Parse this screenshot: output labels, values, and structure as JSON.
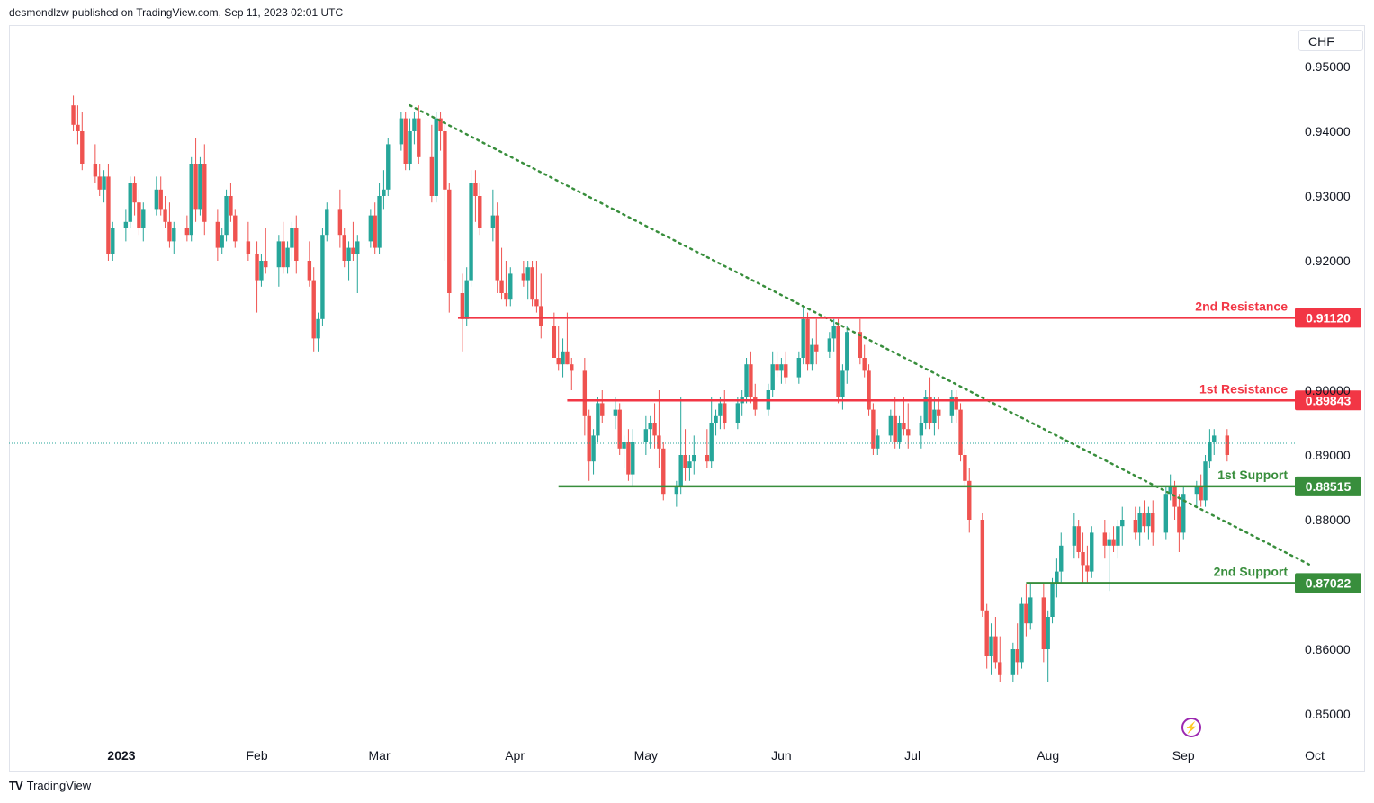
{
  "header": {
    "publisher": "desmondlzw published on TradingView.com, Sep 11, 2023 02:01 UTC"
  },
  "currency_label": "CHF",
  "footer": {
    "logo_text": "TV",
    "brand": "TradingView"
  },
  "colors": {
    "up": "#26a69a",
    "down": "#ef5350",
    "resistance": "#f23645",
    "support": "#388e3c",
    "trend": "#388e3c",
    "grid_text": "#131722",
    "lightning": "#9c27b0"
  },
  "icons": {
    "lightning": "lightning-icon",
    "tv_logo": "tradingview-logo-icon"
  },
  "chart_data": {
    "type": "candlestick",
    "title": "",
    "xlabel": "",
    "ylabel": "",
    "ylim": [
      0.845,
      0.955
    ],
    "y_ticks": [
      "0.95000",
      "0.94000",
      "0.93000",
      "0.92000",
      "0.90000",
      "0.89000",
      "0.88000",
      "0.86000",
      "0.85000"
    ],
    "x_ticks": [
      "2023",
      "Feb",
      "Mar",
      "Apr",
      "May",
      "Jun",
      "Jul",
      "Aug",
      "Sep",
      "Oct"
    ],
    "levels": [
      {
        "name": "2nd Resistance",
        "value": "0.91120",
        "price": 0.9112,
        "kind": "resistance"
      },
      {
        "name": "1st Resistance",
        "value": "0.89843",
        "price": 0.89843,
        "kind": "resistance"
      },
      {
        "name": "1st Support",
        "value": "0.88515",
        "price": 0.88515,
        "kind": "support"
      },
      {
        "name": "2nd Support",
        "value": "0.87022",
        "price": 0.87022,
        "kind": "support"
      }
    ],
    "trendline": {
      "start": [
        "Mar 8",
        0.944
      ],
      "end": [
        "Sep 30",
        0.873
      ],
      "style": "dotted"
    },
    "last_price": 0.8918,
    "grid": false,
    "candles": [
      [
        "Dec 21",
        0.944,
        0.9455,
        0.94,
        0.941
      ],
      [
        "Dec 22",
        0.941,
        0.944,
        0.938,
        0.94
      ],
      [
        "Dec 23",
        0.94,
        0.943,
        0.934,
        0.935
      ],
      [
        "Dec 26",
        0.935,
        0.938,
        0.932,
        0.933
      ],
      [
        "Dec 27",
        0.933,
        0.935,
        0.93,
        0.931
      ],
      [
        "Dec 28",
        0.931,
        0.934,
        0.929,
        0.933
      ],
      [
        "Dec 29",
        0.933,
        0.935,
        0.92,
        0.921
      ],
      [
        "Dec 30",
        0.921,
        0.926,
        0.92,
        0.925
      ],
      [
        "Jan 2",
        0.925,
        0.928,
        0.923,
        0.926
      ],
      [
        "Jan 3",
        0.926,
        0.933,
        0.925,
        0.932
      ],
      [
        "Jan 4",
        0.932,
        0.933,
        0.927,
        0.929
      ],
      [
        "Jan 5",
        0.929,
        0.931,
        0.924,
        0.925
      ],
      [
        "Jan 6",
        0.925,
        0.929,
        0.923,
        0.928
      ],
      [
        "Jan 9",
        0.928,
        0.933,
        0.927,
        0.931
      ],
      [
        "Jan 10",
        0.931,
        0.933,
        0.927,
        0.928
      ],
      [
        "Jan 11",
        0.928,
        0.93,
        0.925,
        0.926
      ],
      [
        "Jan 12",
        0.926,
        0.929,
        0.922,
        0.923
      ],
      [
        "Jan 13",
        0.923,
        0.926,
        0.921,
        0.925
      ],
      [
        "Jan 16",
        0.925,
        0.927,
        0.923,
        0.924
      ],
      [
        "Jan 17",
        0.924,
        0.936,
        0.923,
        0.935
      ],
      [
        "Jan 18",
        0.935,
        0.939,
        0.926,
        0.928
      ],
      [
        "Jan 19",
        0.928,
        0.936,
        0.927,
        0.935
      ],
      [
        "Jan 20",
        0.935,
        0.938,
        0.924,
        0.926
      ],
      [
        "Jan 23",
        0.926,
        0.928,
        0.92,
        0.922
      ],
      [
        "Jan 24",
        0.922,
        0.925,
        0.921,
        0.924
      ],
      [
        "Jan 25",
        0.924,
        0.931,
        0.923,
        0.93
      ],
      [
        "Jan 26",
        0.93,
        0.932,
        0.926,
        0.927
      ],
      [
        "Jan 27",
        0.927,
        0.928,
        0.922,
        0.923
      ],
      [
        "Jan 30",
        0.923,
        0.926,
        0.92,
        0.921
      ],
      [
        "Feb 1",
        0.921,
        0.923,
        0.912,
        0.917
      ],
      [
        "Feb 2",
        0.917,
        0.921,
        0.916,
        0.92
      ],
      [
        "Feb 3",
        0.92,
        0.925,
        0.918,
        0.919
      ],
      [
        "Feb 6",
        0.919,
        0.924,
        0.916,
        0.923
      ],
      [
        "Feb 7",
        0.923,
        0.926,
        0.918,
        0.919
      ],
      [
        "Feb 8",
        0.919,
        0.923,
        0.918,
        0.922
      ],
      [
        "Feb 9",
        0.922,
        0.926,
        0.92,
        0.925
      ],
      [
        "Feb 10",
        0.925,
        0.927,
        0.918,
        0.92
      ],
      [
        "Feb 13",
        0.92,
        0.923,
        0.916,
        0.917
      ],
      [
        "Feb 14",
        0.917,
        0.919,
        0.906,
        0.908
      ],
      [
        "Feb 15",
        0.908,
        0.912,
        0.906,
        0.911
      ],
      [
        "Feb 16",
        0.911,
        0.925,
        0.91,
        0.924
      ],
      [
        "Feb 17",
        0.924,
        0.929,
        0.923,
        0.928
      ],
      [
        "Feb 20",
        0.928,
        0.931,
        0.922,
        0.924
      ],
      [
        "Feb 21",
        0.924,
        0.925,
        0.919,
        0.92
      ],
      [
        "Feb 22",
        0.92,
        0.923,
        0.917,
        0.922
      ],
      [
        "Feb 23",
        0.922,
        0.926,
        0.92,
        0.921
      ],
      [
        "Feb 24",
        0.921,
        0.924,
        0.915,
        0.923
      ],
      [
        "Feb 27",
        0.923,
        0.928,
        0.922,
        0.927
      ],
      [
        "Feb 28",
        0.927,
        0.929,
        0.921,
        0.922
      ],
      [
        "Mar 1",
        0.922,
        0.932,
        0.921,
        0.93
      ],
      [
        "Mar 2",
        0.93,
        0.934,
        0.928,
        0.931
      ],
      [
        "Mar 3",
        0.931,
        0.939,
        0.93,
        0.938
      ],
      [
        "Mar 6",
        0.938,
        0.943,
        0.937,
        0.942
      ],
      [
        "Mar 7",
        0.942,
        0.943,
        0.934,
        0.935
      ],
      [
        "Mar 8",
        0.935,
        0.942,
        0.934,
        0.94
      ],
      [
        "Mar 9",
        0.94,
        0.943,
        0.938,
        0.942
      ],
      [
        "Mar 10",
        0.942,
        0.944,
        0.935,
        0.936
      ],
      [
        "Mar 13",
        0.936,
        0.941,
        0.929,
        0.93
      ],
      [
        "Mar 14",
        0.93,
        0.943,
        0.929,
        0.942
      ],
      [
        "Mar 15",
        0.942,
        0.943,
        0.937,
        0.94
      ],
      [
        "Mar 16",
        0.94,
        0.941,
        0.92,
        0.931
      ],
      [
        "Mar 17",
        0.931,
        0.932,
        0.912,
        0.915
      ],
      [
        "Mar 20",
        0.915,
        0.918,
        0.906,
        0.911
      ],
      [
        "Mar 21",
        0.911,
        0.919,
        0.91,
        0.917
      ],
      [
        "Mar 22",
        0.917,
        0.934,
        0.916,
        0.932
      ],
      [
        "Mar 23",
        0.932,
        0.934,
        0.926,
        0.93
      ],
      [
        "Mar 24",
        0.93,
        0.932,
        0.924,
        0.925
      ],
      [
        "Mar 27",
        0.925,
        0.931,
        0.923,
        0.927
      ],
      [
        "Mar 28",
        0.927,
        0.929,
        0.915,
        0.917
      ],
      [
        "Mar 29",
        0.917,
        0.922,
        0.914,
        0.915
      ],
      [
        "Mar 30",
        0.915,
        0.92,
        0.913,
        0.914
      ],
      [
        "Mar 31",
        0.914,
        0.919,
        0.913,
        0.918
      ],
      [
        "Apr 3",
        0.918,
        0.92,
        0.916,
        0.917
      ],
      [
        "Apr 4",
        0.917,
        0.92,
        0.914,
        0.919
      ],
      [
        "Apr 5",
        0.919,
        0.92,
        0.913,
        0.914
      ],
      [
        "Apr 6",
        0.914,
        0.92,
        0.912,
        0.913
      ],
      [
        "Apr 7",
        0.913,
        0.918,
        0.908,
        0.91
      ],
      [
        "Apr 10",
        0.91,
        0.912,
        0.905,
        0.905
      ],
      [
        "Apr 11",
        0.905,
        0.91,
        0.903,
        0.904
      ],
      [
        "Apr 12",
        0.904,
        0.908,
        0.902,
        0.906
      ],
      [
        "Apr 13",
        0.906,
        0.912,
        0.904,
        0.904
      ],
      [
        "Apr 14",
        0.904,
        0.905,
        0.9,
        0.903
      ],
      [
        "Apr 17",
        0.903,
        0.905,
        0.893,
        0.896
      ],
      [
        "Apr 18",
        0.896,
        0.897,
        0.886,
        0.889
      ],
      [
        "Apr 19",
        0.889,
        0.894,
        0.887,
        0.893
      ],
      [
        "Apr 20",
        0.893,
        0.899,
        0.892,
        0.898
      ],
      [
        "Apr 21",
        0.898,
        0.9,
        0.895,
        0.896
      ],
      [
        "Apr 24",
        0.896,
        0.899,
        0.894,
        0.897
      ],
      [
        "Apr 25",
        0.897,
        0.898,
        0.89,
        0.891
      ],
      [
        "Apr 26",
        0.891,
        0.893,
        0.888,
        0.892
      ],
      [
        "Apr 27",
        0.892,
        0.894,
        0.886,
        0.887
      ],
      [
        "Apr 28",
        0.887,
        0.894,
        0.885,
        0.892
      ],
      [
        "May 1",
        0.892,
        0.896,
        0.89,
        0.894
      ],
      [
        "May 2",
        0.894,
        0.896,
        0.891,
        0.895
      ],
      [
        "May 3",
        0.895,
        0.898,
        0.891,
        0.893
      ],
      [
        "May 4",
        0.893,
        0.9,
        0.888,
        0.891
      ],
      [
        "May 5",
        0.891,
        0.892,
        0.883,
        0.884
      ],
      [
        "May 8",
        0.884,
        0.886,
        0.882,
        0.885
      ],
      [
        "May 9",
        0.885,
        0.899,
        0.884,
        0.89
      ],
      [
        "May 10",
        0.89,
        0.894,
        0.886,
        0.888
      ],
      [
        "May 11",
        0.888,
        0.89,
        0.886,
        0.889
      ],
      [
        "May 12",
        0.889,
        0.893,
        0.887,
        0.89
      ],
      [
        "May 15",
        0.89,
        0.894,
        0.888,
        0.889
      ],
      [
        "May 16",
        0.889,
        0.899,
        0.888,
        0.895
      ],
      [
        "May 17",
        0.895,
        0.897,
        0.893,
        0.896
      ],
      [
        "May 18",
        0.896,
        0.899,
        0.894,
        0.898
      ],
      [
        "May 19",
        0.898,
        0.9,
        0.894,
        0.895
      ],
      [
        "May 22",
        0.895,
        0.899,
        0.894,
        0.898
      ],
      [
        "May 23",
        0.898,
        0.9,
        0.896,
        0.899
      ],
      [
        "May 24",
        0.899,
        0.905,
        0.898,
        0.904
      ],
      [
        "May 25",
        0.904,
        0.906,
        0.898,
        0.899
      ],
      [
        "May 26",
        0.899,
        0.901,
        0.896,
        0.897
      ],
      [
        "May 29",
        0.897,
        0.901,
        0.896,
        0.9
      ],
      [
        "May 30",
        0.9,
        0.906,
        0.899,
        0.904
      ],
      [
        "May 31",
        0.904,
        0.906,
        0.902,
        0.903
      ],
      [
        "Jun 1",
        0.903,
        0.905,
        0.901,
        0.904
      ],
      [
        "Jun 2",
        0.904,
        0.906,
        0.901,
        0.902
      ],
      [
        "Jun 5",
        0.902,
        0.906,
        0.901,
        0.905
      ],
      [
        "Jun 6",
        0.905,
        0.913,
        0.904,
        0.911
      ],
      [
        "Jun 7",
        0.911,
        0.912,
        0.903,
        0.904
      ],
      [
        "Jun 8",
        0.904,
        0.908,
        0.903,
        0.907
      ],
      [
        "Jun 9",
        0.907,
        0.911,
        0.904,
        0.906
      ],
      [
        "Jun 12",
        0.906,
        0.909,
        0.905,
        0.908
      ],
      [
        "Jun 13",
        0.908,
        0.911,
        0.906,
        0.91
      ],
      [
        "Jun 14",
        0.91,
        0.911,
        0.898,
        0.899
      ],
      [
        "Jun 15",
        0.899,
        0.904,
        0.897,
        0.903
      ],
      [
        "Jun 16",
        0.903,
        0.91,
        0.901,
        0.909
      ],
      [
        "Jun 19",
        0.909,
        0.911,
        0.904,
        0.905
      ],
      [
        "Jun 20",
        0.905,
        0.907,
        0.902,
        0.903
      ],
      [
        "Jun 21",
        0.903,
        0.904,
        0.896,
        0.897
      ],
      [
        "Jun 22",
        0.897,
        0.898,
        0.89,
        0.891
      ],
      [
        "Jun 23",
        0.891,
        0.894,
        0.89,
        0.893
      ],
      [
        "Jun 26",
        0.893,
        0.897,
        0.892,
        0.896
      ],
      [
        "Jun 27",
        0.896,
        0.899,
        0.891,
        0.892
      ],
      [
        "Jun 28",
        0.892,
        0.896,
        0.891,
        0.895
      ],
      [
        "Jun 29",
        0.895,
        0.899,
        0.893,
        0.894
      ],
      [
        "Jun 30",
        0.894,
        0.898,
        0.891,
        0.893
      ],
      [
        "Jul 3",
        0.893,
        0.896,
        0.891,
        0.895
      ],
      [
        "Jul 4",
        0.895,
        0.9,
        0.894,
        0.899
      ],
      [
        "Jul 5",
        0.899,
        0.902,
        0.894,
        0.895
      ],
      [
        "Jul 6",
        0.895,
        0.899,
        0.893,
        0.897
      ],
      [
        "Jul 7",
        0.897,
        0.899,
        0.894,
        0.896
      ],
      [
        "Jul 10",
        0.896,
        0.9,
        0.895,
        0.899
      ],
      [
        "Jul 11",
        0.899,
        0.9,
        0.895,
        0.897
      ],
      [
        "Jul 12",
        0.897,
        0.898,
        0.889,
        0.89
      ],
      [
        "Jul 13",
        0.89,
        0.891,
        0.885,
        0.886
      ],
      [
        "Jul 14",
        0.886,
        0.888,
        0.878,
        0.88
      ],
      [
        "Jul 17",
        0.88,
        0.881,
        0.865,
        0.866
      ],
      [
        "Jul 18",
        0.866,
        0.867,
        0.857,
        0.859
      ],
      [
        "Jul 19",
        0.859,
        0.864,
        0.856,
        0.862
      ],
      [
        "Jul 20",
        0.862,
        0.865,
        0.857,
        0.858
      ],
      [
        "Jul 21",
        0.858,
        0.862,
        0.855,
        0.856
      ],
      [
        "Jul 24",
        0.856,
        0.861,
        0.855,
        0.86
      ],
      [
        "Jul 25",
        0.86,
        0.864,
        0.856,
        0.858
      ],
      [
        "Jul 26",
        0.858,
        0.868,
        0.857,
        0.867
      ],
      [
        "Jul 27",
        0.867,
        0.87,
        0.862,
        0.864
      ],
      [
        "Jul 28",
        0.864,
        0.87,
        0.863,
        0.868
      ],
      [
        "Jul 31",
        0.868,
        0.87,
        0.858,
        0.86
      ],
      [
        "Aug 1",
        0.86,
        0.866,
        0.855,
        0.865
      ],
      [
        "Aug 2",
        0.865,
        0.871,
        0.864,
        0.87
      ],
      [
        "Aug 3",
        0.87,
        0.874,
        0.868,
        0.872
      ],
      [
        "Aug 4",
        0.872,
        0.878,
        0.87,
        0.876
      ],
      [
        "Aug 7",
        0.876,
        0.881,
        0.874,
        0.879
      ],
      [
        "Aug 8",
        0.879,
        0.88,
        0.874,
        0.875
      ],
      [
        "Aug 9",
        0.875,
        0.878,
        0.87,
        0.873
      ],
      [
        "Aug 10",
        0.873,
        0.876,
        0.87,
        0.872
      ],
      [
        "Aug 11",
        0.872,
        0.879,
        0.871,
        0.878
      ],
      [
        "Aug 14",
        0.878,
        0.88,
        0.874,
        0.876
      ],
      [
        "Aug 15",
        0.876,
        0.878,
        0.869,
        0.877
      ],
      [
        "Aug 16",
        0.877,
        0.879,
        0.875,
        0.876
      ],
      [
        "Aug 17",
        0.876,
        0.88,
        0.874,
        0.879
      ],
      [
        "Aug 18",
        0.879,
        0.882,
        0.876,
        0.88
      ],
      [
        "Aug 21",
        0.88,
        0.882,
        0.877,
        0.878
      ],
      [
        "Aug 22",
        0.878,
        0.882,
        0.876,
        0.881
      ],
      [
        "Aug 23",
        0.881,
        0.883,
        0.878,
        0.879
      ],
      [
        "Aug 24",
        0.879,
        0.882,
        0.877,
        0.881
      ],
      [
        "Aug 25",
        0.881,
        0.883,
        0.876,
        0.878
      ],
      [
        "Aug 28",
        0.878,
        0.885,
        0.877,
        0.884
      ],
      [
        "Aug 29",
        0.884,
        0.887,
        0.883,
        0.885
      ],
      [
        "Aug 30",
        0.885,
        0.886,
        0.88,
        0.882
      ],
      [
        "Aug 31",
        0.882,
        0.884,
        0.875,
        0.878
      ],
      [
        "Sep 1",
        0.878,
        0.885,
        0.877,
        0.884
      ],
      [
        "Sep 4",
        0.884,
        0.886,
        0.882,
        0.885
      ],
      [
        "Sep 5",
        0.885,
        0.887,
        0.882,
        0.883
      ],
      [
        "Sep 6",
        0.883,
        0.89,
        0.882,
        0.889
      ],
      [
        "Sep 7",
        0.889,
        0.894,
        0.888,
        0.892
      ],
      [
        "Sep 8",
        0.892,
        0.894,
        0.89,
        0.893
      ],
      [
        "Sep 11",
        0.893,
        0.894,
        0.889,
        0.89
      ]
    ]
  }
}
